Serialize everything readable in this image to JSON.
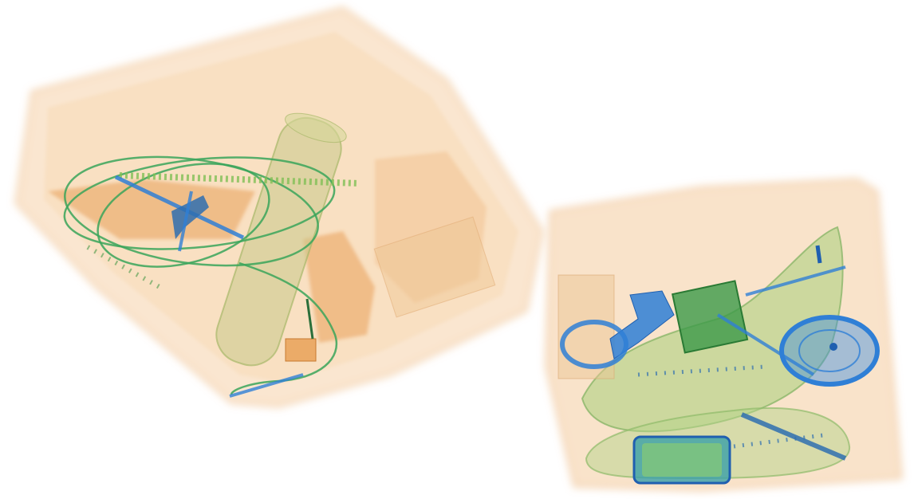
{
  "scene": {
    "kind": "x-ray baggage scan",
    "background": "#ffffff",
    "palette": {
      "organic": "#f0b070",
      "organic_dark": "#e08a3a",
      "mixed": "#8ccf6a",
      "mixed_dark": "#3d9a3a",
      "metal": "#2f7fd6",
      "metal_dark": "#1f5fb0"
    },
    "objects": [
      {
        "name": "left-bag",
        "contains": [
          "cable-coil",
          "cylinder-container",
          "small-device",
          "connector"
        ]
      },
      {
        "name": "right-bag",
        "contains": [
          "shoe",
          "ring-object",
          "circuit-board",
          "card-device",
          "tool"
        ]
      }
    ]
  }
}
